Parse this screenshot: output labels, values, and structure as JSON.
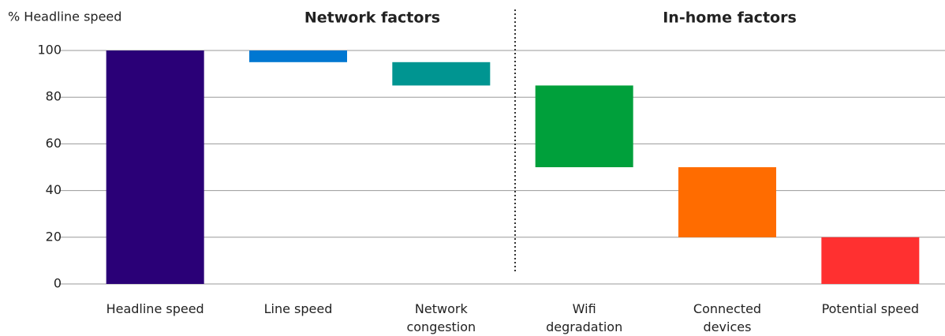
{
  "chart_data": {
    "type": "waterfall",
    "y_axis_label": "% Headline speed",
    "groups": [
      "Network factors",
      "In-home factors"
    ],
    "categories": [
      "Headline speed",
      "Line speed",
      "Network congestion",
      "Wifi degradation",
      "Connected devices",
      "Potential speed"
    ],
    "values": [
      100,
      -5,
      -10,
      -35,
      -30,
      20
    ],
    "is_total": [
      true,
      false,
      false,
      false,
      false,
      true
    ],
    "colors": [
      "#2a0077",
      "#0077d1",
      "#009591",
      "#00a03b",
      "#ff6c00",
      "#ff3030"
    ],
    "ylim": [
      0,
      100
    ],
    "yticks": [
      0,
      20,
      40,
      60,
      80,
      100
    ],
    "grid": true
  }
}
